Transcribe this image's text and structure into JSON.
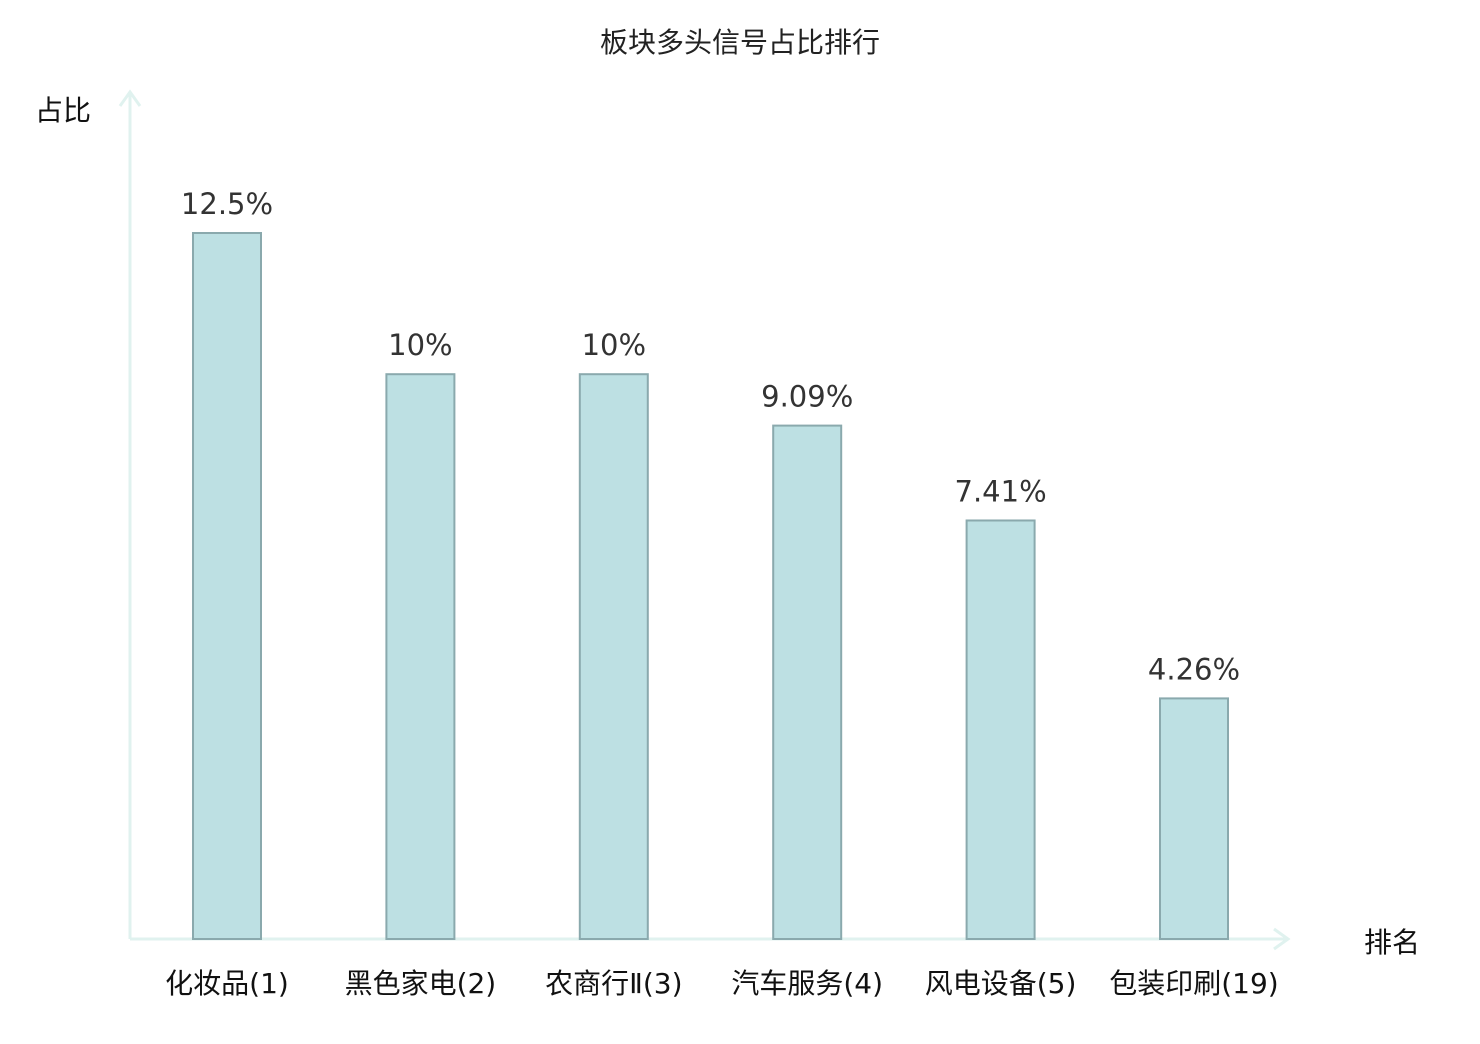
{
  "chart_data": {
    "type": "bar",
    "title": "板块多头信号占比排行",
    "ylabel": "占比",
    "xlabel": "排名",
    "categories": [
      "化妆品(1)",
      "黑色家电(2)",
      "农商行Ⅱ(3)",
      "汽车服务(4)",
      "风电设备(5)",
      "包装印刷(19)"
    ],
    "values": [
      12.5,
      10,
      10,
      9.09,
      7.41,
      4.26
    ],
    "value_labels": [
      "12.5%",
      "10%",
      "10%",
      "9.09%",
      "7.41%",
      "4.26%"
    ],
    "highlight_index": 5,
    "ylim": [
      0,
      15
    ],
    "grid": false,
    "colors": {
      "bar_fill": "#bde0e3",
      "bar_stroke": "#8aa9ad",
      "axis": "#e0f2ef",
      "highlight_text": "#e02020",
      "normal_text": "#111111",
      "value_text": "#333333"
    }
  }
}
